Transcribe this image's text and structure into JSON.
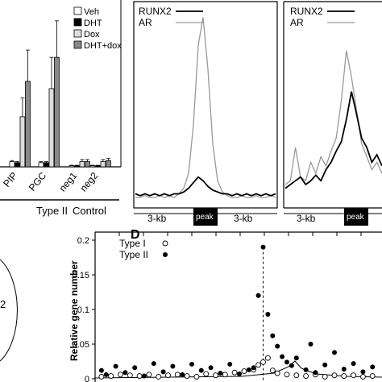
{
  "chart_data": [
    {
      "type": "bar",
      "panel_label": "",
      "categories": [
        "PIP",
        "PGC",
        "neg1",
        "neg2"
      ],
      "group_labels": [
        {
          "label": "Type II",
          "categories": [
            "PIP",
            "PGC"
          ]
        },
        {
          "label": "Control",
          "categories": [
            "neg1",
            "neg2"
          ]
        }
      ],
      "series": [
        {
          "name": "Veh",
          "color": "#ffffff",
          "values": [
            0.05,
            0.04,
            0.01,
            0.01
          ],
          "errors": [
            0.01,
            0.01,
            0.005,
            0.005
          ]
        },
        {
          "name": "DHT",
          "color": "#000000",
          "values": [
            0.04,
            0.04,
            0.01,
            0.01
          ],
          "errors": [
            0.01,
            0.01,
            0.005,
            0.005
          ]
        },
        {
          "name": "Dox",
          "color": "#dddddd",
          "values": [
            0.48,
            0.75,
            0.05,
            0.05
          ],
          "errors": [
            0.18,
            0.3,
            0.02,
            0.02
          ]
        },
        {
          "name": "DHT+dox",
          "color": "#888888",
          "values": [
            0.82,
            1.05,
            0.05,
            0.06
          ],
          "errors": [
            0.3,
            0.35,
            0.02,
            0.02
          ]
        }
      ],
      "ylim": [
        0,
        1.6
      ],
      "legend_position": "top-right"
    },
    {
      "type": "line",
      "panel_label": "",
      "x_labels": [
        "3-kb",
        "peak",
        "3-kb"
      ],
      "series": [
        {
          "name": "RUNX2",
          "color": "#000000",
          "values": [
            0.05,
            0.04,
            0.05,
            0.04,
            0.05,
            0.04,
            0.05,
            0.04,
            0.05,
            0.05,
            0.06,
            0.08,
            0.11,
            0.14,
            0.12,
            0.09,
            0.07,
            0.06,
            0.05,
            0.05,
            0.04,
            0.05,
            0.04,
            0.05,
            0.04,
            0.05,
            0.04,
            0.05,
            0.04,
            0.05
          ]
        },
        {
          "name": "AR",
          "color": "#999999",
          "values": [
            0.03,
            0.03,
            0.04,
            0.03,
            0.03,
            0.04,
            0.03,
            0.04,
            0.03,
            0.05,
            0.08,
            0.16,
            0.42,
            0.85,
            1.0,
            0.72,
            0.32,
            0.12,
            0.06,
            0.04,
            0.03,
            0.03,
            0.04,
            0.03,
            0.03,
            0.04,
            0.03,
            0.03,
            0.04,
            0.03
          ]
        }
      ],
      "ylim": [
        0,
        1.05
      ],
      "legend_position": "top-left"
    },
    {
      "type": "line",
      "panel_label": "",
      "x_labels": [
        "3-kb",
        "peak"
      ],
      "series": [
        {
          "name": "RUNX2",
          "color": "#000000",
          "values": [
            0.08,
            0.1,
            0.12,
            0.14,
            0.1,
            0.12,
            0.15,
            0.12,
            0.18,
            0.22,
            0.28,
            0.33,
            0.45,
            0.6,
            0.48,
            0.35,
            0.3,
            0.22,
            0.26,
            0.2
          ]
        },
        {
          "name": "AR",
          "color": "#999999",
          "values": [
            0.1,
            0.12,
            0.3,
            0.14,
            0.12,
            0.22,
            0.16,
            0.25,
            0.2,
            0.28,
            0.35,
            0.55,
            0.82,
            0.68,
            0.5,
            0.32,
            0.25,
            0.18,
            0.22,
            0.16
          ]
        }
      ],
      "ylim": [
        0,
        1.05
      ],
      "legend_position": "top-left"
    },
    {
      "type": "scatter",
      "panel_label": "D",
      "ylabel": "Relative gene number",
      "yticks": [
        "0",
        "0.05",
        "0.1",
        "0.15",
        "0.2"
      ],
      "ylim": [
        0,
        0.2
      ],
      "xlim": [
        0,
        60
      ],
      "reference_x": 35,
      "series": [
        {
          "name": "Type I",
          "marker": "open",
          "points": [
            [
              1,
              0.003
            ],
            [
              3,
              0.004
            ],
            [
              5,
              0.006
            ],
            [
              7,
              0.005
            ],
            [
              9,
              0.004
            ],
            [
              11,
              0.006
            ],
            [
              13,
              0.003
            ],
            [
              15,
              0.005
            ],
            [
              17,
              0.006
            ],
            [
              19,
              0.004
            ],
            [
              21,
              0.003
            ],
            [
              23,
              0.007
            ],
            [
              25,
              0.005
            ],
            [
              27,
              0.006
            ],
            [
              29,
              0.009
            ],
            [
              31,
              0.011
            ],
            [
              33,
              0.013
            ],
            [
              34,
              0.02
            ],
            [
              35,
              0.024
            ],
            [
              36,
              0.03
            ],
            [
              37,
              0.012
            ],
            [
              38,
              0.008
            ],
            [
              40,
              0.006
            ],
            [
              42,
              0.005
            ],
            [
              44,
              0.004
            ],
            [
              46,
              0.006
            ],
            [
              48,
              0.003
            ],
            [
              50,
              0.005
            ],
            [
              52,
              0.004
            ],
            [
              54,
              0.005
            ],
            [
              56,
              0.003
            ],
            [
              58,
              0.004
            ]
          ]
        },
        {
          "name": "Type II",
          "marker": "filled",
          "points": [
            [
              1,
              0.012
            ],
            [
              2,
              0.006
            ],
            [
              4,
              0.018
            ],
            [
              6,
              0.009
            ],
            [
              8,
              0.016
            ],
            [
              10,
              0.004
            ],
            [
              12,
              0.022
            ],
            [
              14,
              0.01
            ],
            [
              16,
              0.018
            ],
            [
              18,
              0.006
            ],
            [
              20,
              0.021
            ],
            [
              22,
              0.012
            ],
            [
              24,
              0.016
            ],
            [
              26,
              0.008
            ],
            [
              28,
              0.021
            ],
            [
              30,
              0.007
            ],
            [
              32,
              0.013
            ],
            [
              33,
              0.016
            ],
            [
              35,
              0.19
            ],
            [
              34,
              0.12
            ],
            [
              36,
              0.093
            ],
            [
              37,
              0.062
            ],
            [
              38,
              0.047
            ],
            [
              39,
              0.032
            ],
            [
              40,
              0.024
            ],
            [
              41,
              0.019
            ],
            [
              42,
              0.03
            ],
            [
              44,
              0.013
            ],
            [
              45,
              0.05
            ],
            [
              46,
              0.009
            ],
            [
              48,
              0.02
            ],
            [
              50,
              0.038
            ],
            [
              52,
              0.014
            ],
            [
              54,
              0.022
            ],
            [
              56,
              0.01
            ],
            [
              58,
              0.017
            ]
          ]
        }
      ],
      "legend_position": "top-left"
    }
  ]
}
